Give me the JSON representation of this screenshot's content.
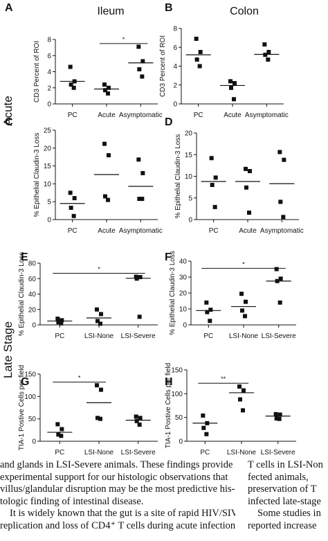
{
  "row_labels": {
    "acute": "Acute",
    "late": "Late Stage"
  },
  "chart_data": [
    {
      "id": "A",
      "panel_label": "A",
      "title": "Ileum",
      "type": "scatter",
      "ylabel": "CD3 Percent of ROI",
      "ylim": [
        0,
        8
      ],
      "yticks": [
        0,
        2,
        4,
        6,
        8
      ],
      "categories": [
        "PC",
        "Acute",
        "Asymptomatic"
      ],
      "points": [
        [
          4.6,
          2.8,
          2.4,
          2.0
        ],
        [
          2.4,
          2.0,
          1.7,
          1.3
        ],
        [
          7.1,
          5.3,
          4.3,
          3.4
        ]
      ],
      "means": [
        2.8,
        1.85,
        5.1
      ],
      "significance": [
        {
          "from": 1,
          "to": 2,
          "y": 7.5,
          "label": "*"
        }
      ]
    },
    {
      "id": "B",
      "panel_label": "B",
      "title": "Colon",
      "type": "scatter",
      "ylabel": "CD3 Percent of ROI",
      "ylim": [
        0,
        8
      ],
      "yticks": [
        0,
        2,
        4,
        6,
        8
      ],
      "categories": [
        "PC",
        "Acute",
        "Asymptomatic"
      ],
      "points": [
        [
          6.9,
          5.5,
          4.7,
          4.0
        ],
        [
          2.4,
          2.2,
          1.7,
          0.5
        ],
        [
          6.3,
          5.5,
          5.2,
          4.7
        ]
      ],
      "means": [
        5.2,
        1.95,
        5.25
      ],
      "significance": []
    },
    {
      "id": "C",
      "panel_label": "C",
      "type": "scatter",
      "ylabel": "% Epithelial Claudin-3 Loss",
      "ylim": [
        0,
        25
      ],
      "yticks": [
        0,
        5,
        10,
        15,
        20,
        25
      ],
      "categories": [
        "PC",
        "Acute",
        "Asymptomatic"
      ],
      "points": [
        [
          7.5,
          6.0,
          3.3,
          1.0
        ],
        [
          21.2,
          18.0,
          6.5,
          5.5
        ],
        [
          16.8,
          13.0,
          5.8,
          5.8
        ]
      ],
      "means": [
        4.5,
        12.6,
        9.3
      ],
      "significance": []
    },
    {
      "id": "D",
      "panel_label": "D",
      "type": "scatter",
      "ylabel": "% Epithelial Claudin-3 Loss",
      "ylim": [
        0,
        20
      ],
      "yticks": [
        0,
        5,
        10,
        15,
        20
      ],
      "categories": [
        "PC",
        "Acute",
        "Asymptomatic"
      ],
      "points": [
        [
          14.2,
          9.7,
          8.0,
          2.9
        ],
        [
          11.7,
          11.2,
          7.4,
          1.6
        ],
        [
          15.6,
          13.8,
          4.1,
          0.6
        ]
      ],
      "means": [
        8.8,
        8.8,
        8.3
      ],
      "significance": []
    },
    {
      "id": "E",
      "panel_label": "E",
      "type": "scatter",
      "ylabel": "% Epithelial Claudin-3 Loss",
      "ylim": [
        0,
        80
      ],
      "yticks": [
        0,
        20,
        40,
        60,
        80
      ],
      "categories": [
        "PC",
        "LSI-None",
        "LSI-Severe"
      ],
      "points": [
        [
          8.0,
          6.0,
          3.5,
          2.0
        ],
        [
          20.0,
          14.0,
          5.0,
          1.5
        ],
        [
          62.5,
          62.0,
          60.0,
          10.5
        ]
      ],
      "means": [
        5.0,
        9.0,
        60.5
      ],
      "significance": [
        {
          "from": 0,
          "to": 2,
          "y": 67,
          "label": "*"
        }
      ]
    },
    {
      "id": "F",
      "panel_label": "F",
      "type": "scatter",
      "ylabel": "% Epithelial Claudin-3 Loss",
      "ylim": [
        0,
        40
      ],
      "yticks": [
        0,
        10,
        20,
        30,
        40
      ],
      "categories": [
        "PC",
        "LSI-None",
        "LSI-Severe"
      ],
      "points": [
        [
          14.0,
          9.5,
          8.0,
          2.5
        ],
        [
          19.5,
          14.5,
          9.0,
          5.5
        ],
        [
          35.0,
          29.0,
          27.5,
          14.0
        ]
      ],
      "means": [
        9.0,
        11.5,
        27.5
      ],
      "significance": [
        {
          "from": 0,
          "to": 2,
          "y": 35.5,
          "label": "*"
        }
      ]
    },
    {
      "id": "G",
      "panel_label": "G",
      "type": "scatter",
      "ylabel": "TIA-1 Postive Cells per field",
      "ylim": [
        0,
        150
      ],
      "yticks": [
        0,
        50,
        100,
        150
      ],
      "categories": [
        "PC",
        "LSI-None",
        "LSI-Severe"
      ],
      "points": [
        [
          38.0,
          27.0,
          15.0,
          12.0
        ],
        [
          125.0,
          115.0,
          52.0,
          50.0
        ],
        [
          55.0,
          52.0,
          45.0,
          37.0
        ]
      ],
      "means": [
        20.0,
        86.0,
        47.0
      ],
      "significance": [
        {
          "from": 0,
          "to": 1,
          "y": 132,
          "label": "*"
        }
      ]
    },
    {
      "id": "H",
      "panel_label": "H",
      "type": "scatter",
      "ylabel": "TIA-1 Postive Cells per field",
      "ylim": [
        0,
        150
      ],
      "yticks": [
        0,
        50,
        100,
        150
      ],
      "categories": [
        "PC",
        "LSI-None",
        "LSI-Severe"
      ],
      "points": [
        [
          54.0,
          38.0,
          28.0,
          15.0
        ],
        [
          115.0,
          107.0,
          88.0,
          65.0
        ],
        [
          57.0,
          56.0,
          48.0,
          47.0
        ]
      ],
      "means": [
        38.0,
        102.0,
        53.0
      ],
      "significance": [
        {
          "from": 0,
          "to": 1,
          "y": 122,
          "label": "**"
        }
      ]
    }
  ],
  "body_text": {
    "left": [
      "and glands in LSI-Severe animals. These findings provide",
      "experimental support for our histologic observations that",
      "villus/glandular disruption may be the most predictive his-",
      "tologic finding of intestinal disease.",
      "It is widely known that the gut is a site of rapid HIV/SIV",
      "replication and loss of CD4⁺ T cells during acute infection"
    ],
    "right": [
      "T cells in LSI-Non",
      "fected animals,",
      "preservation of T",
      "infected late-stage",
      "Some studies in",
      "reported increase"
    ]
  }
}
